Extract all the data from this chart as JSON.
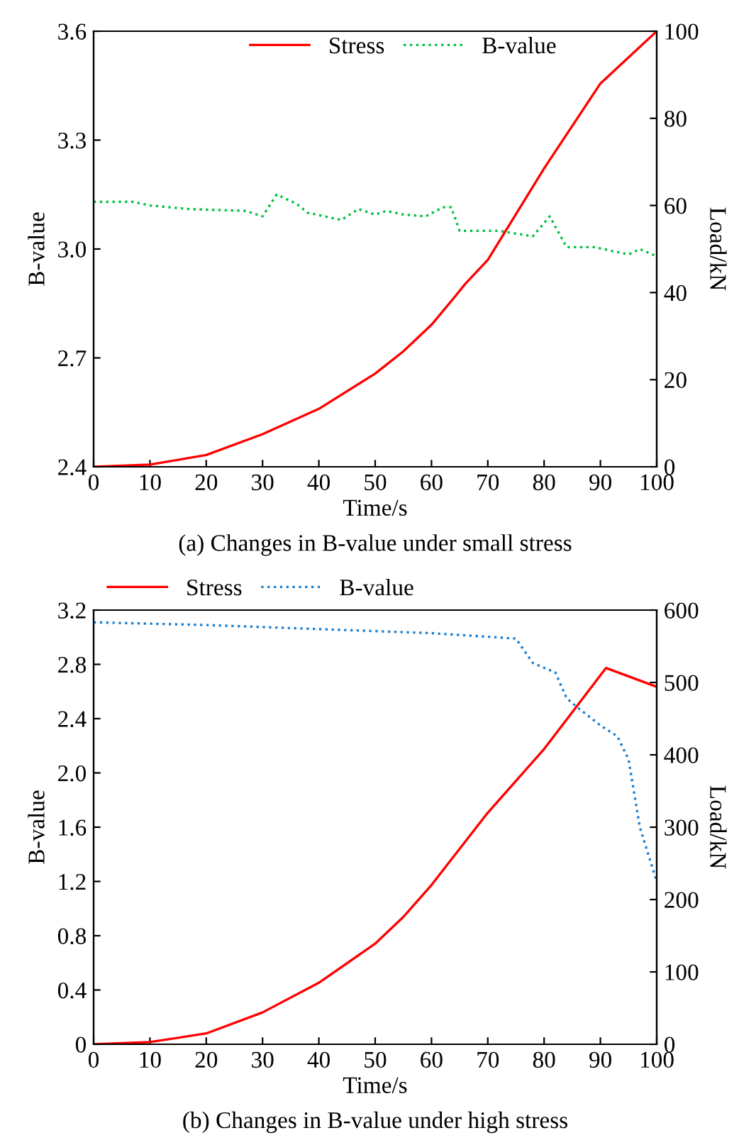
{
  "chart_data": [
    {
      "type": "line",
      "xlabel": "Time/s",
      "ylabel": "B-value",
      "y2label": "Load/kN",
      "annotations": [
        "(a) Changes in B-value under small stress"
      ],
      "xlim": [
        0,
        100
      ],
      "xticks": [
        0,
        10,
        20,
        30,
        40,
        50,
        60,
        70,
        80,
        90,
        100
      ],
      "ylim": [
        2.4,
        3.6
      ],
      "yticks": [
        2.4,
        2.7,
        {
          "value": 3,
          "label": "3.0"
        },
        3.3,
        3.6
      ],
      "y2lim": [
        0,
        100
      ],
      "y2ticks": [
        0,
        20,
        40,
        60,
        80,
        100
      ],
      "legend": "top",
      "grid": false,
      "series": [
        {
          "name": "Stress",
          "color": "#ff0000",
          "axis": "y2",
          "line_style": "solid",
          "x": [
            0,
            10,
            20,
            30,
            40,
            50,
            55,
            60,
            64,
            66,
            70,
            80,
            90,
            100
          ],
          "values": [
            0,
            0.5,
            2.7,
            7.5,
            13.3,
            21.4,
            26.5,
            32.6,
            38.8,
            42,
            47.5,
            68.5,
            88,
            100
          ]
        },
        {
          "name": "B-value",
          "color": "#00c040",
          "line_style": "dotted",
          "x": [
            0,
            7,
            10,
            17,
            27,
            30,
            32.5,
            36,
            38,
            44,
            47,
            50,
            52,
            55,
            59,
            62,
            63.5,
            65,
            72,
            78,
            81,
            84,
            89,
            95,
            97,
            100
          ],
          "values": [
            3.13,
            3.13,
            3.12,
            3.11,
            3.105,
            3.09,
            3.15,
            3.125,
            3.1,
            3.08,
            3.11,
            3.095,
            3.105,
            3.095,
            3.09,
            3.115,
            3.115,
            3.05,
            3.05,
            3.035,
            3.09,
            3.005,
            3.005,
            2.985,
            3.0,
            2.98
          ]
        }
      ]
    },
    {
      "type": "line",
      "xlabel": "Time/s",
      "ylabel": "B-value",
      "y2label": "Load/kN",
      "annotations": [
        "(b) Changes in B-value under high stress"
      ],
      "xlim": [
        0,
        100
      ],
      "xticks": [
        0,
        10,
        20,
        30,
        40,
        50,
        60,
        70,
        80,
        90,
        100
      ],
      "ylim": [
        0,
        3.2
      ],
      "yticks": [
        0,
        0.4,
        0.8,
        1.2,
        1.6,
        {
          "value": 2,
          "label": "2.0"
        },
        2.4,
        2.8,
        3.2
      ],
      "y2lim": [
        0,
        600
      ],
      "y2ticks": [
        0,
        100,
        200,
        300,
        400,
        500,
        600
      ],
      "legend": "top left",
      "grid": false,
      "series": [
        {
          "name": "Stress",
          "color": "#ff0000",
          "axis": "y2",
          "line_style": "solid",
          "x": [
            0,
            10,
            20,
            30,
            40,
            50,
            55,
            60,
            70,
            80,
            91,
            100
          ],
          "values": [
            0,
            3,
            15,
            44,
            85,
            139,
            176,
            220,
            320,
            408,
            520,
            494
          ]
        },
        {
          "name": "B-value",
          "color": "#1a7fd0",
          "line_style": "dotted",
          "x": [
            0,
            20,
            40,
            60,
            75,
            78,
            82,
            84,
            86,
            90,
            93,
            95,
            97,
            100
          ],
          "values": [
            3.11,
            3.09,
            3.06,
            3.03,
            2.99,
            2.81,
            2.74,
            2.55,
            2.48,
            2.35,
            2.27,
            2.1,
            1.6,
            1.2
          ]
        }
      ]
    }
  ]
}
